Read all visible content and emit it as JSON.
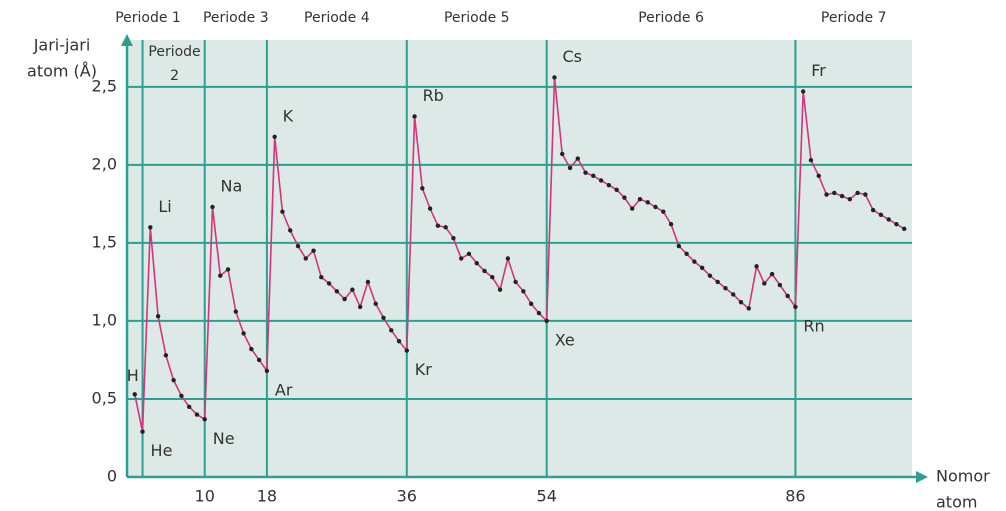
{
  "chart_data": {
    "type": "line",
    "ylabel": [
      "Jari-jari",
      "atom (Å)"
    ],
    "xlabel": [
      "Nomor",
      "atom"
    ],
    "x": [
      1,
      2,
      3,
      4,
      5,
      6,
      7,
      8,
      9,
      10,
      11,
      12,
      13,
      14,
      15,
      16,
      17,
      18,
      19,
      20,
      21,
      22,
      23,
      24,
      25,
      26,
      27,
      28,
      29,
      30,
      31,
      32,
      33,
      34,
      35,
      36,
      37,
      38,
      39,
      40,
      41,
      42,
      43,
      44,
      45,
      46,
      47,
      48,
      49,
      50,
      51,
      52,
      53,
      54,
      55,
      56,
      57,
      58,
      59,
      60,
      61,
      62,
      63,
      64,
      65,
      66,
      67,
      68,
      69,
      70,
      71,
      72,
      73,
      74,
      75,
      76,
      77,
      78,
      79,
      80,
      81,
      82,
      83,
      84,
      85,
      86,
      87,
      88,
      89,
      90,
      91,
      92,
      93,
      94,
      95,
      96,
      97,
      98,
      99,
      100
    ],
    "values": [
      0.53,
      0.29,
      1.6,
      1.03,
      0.78,
      0.62,
      0.52,
      0.45,
      0.4,
      0.37,
      1.73,
      1.29,
      1.33,
      1.06,
      0.92,
      0.82,
      0.75,
      0.68,
      2.18,
      1.7,
      1.58,
      1.48,
      1.4,
      1.45,
      1.28,
      1.24,
      1.19,
      1.14,
      1.2,
      1.09,
      1.25,
      1.11,
      1.02,
      0.94,
      0.87,
      0.81,
      2.31,
      1.85,
      1.72,
      1.61,
      1.6,
      1.53,
      1.4,
      1.43,
      1.37,
      1.32,
      1.28,
      1.2,
      1.4,
      1.25,
      1.19,
      1.11,
      1.05,
      1.0,
      2.56,
      2.07,
      1.98,
      2.04,
      1.95,
      1.93,
      1.9,
      1.87,
      1.84,
      1.79,
      1.72,
      1.78,
      1.76,
      1.73,
      1.7,
      1.62,
      1.48,
      1.43,
      1.38,
      1.34,
      1.29,
      1.25,
      1.21,
      1.17,
      1.12,
      1.08,
      1.35,
      1.24,
      1.3,
      1.23,
      1.16,
      1.09,
      2.47,
      2.03,
      1.93,
      1.81,
      1.82,
      1.8,
      1.78,
      1.82,
      1.81,
      1.71,
      1.68,
      1.65,
      1.62,
      1.59
    ],
    "color": "#d6327e",
    "marker_color": "#222222",
    "xlim": [
      0,
      101
    ],
    "ylim": [
      0,
      2.8
    ],
    "xticks": [
      10,
      18,
      36,
      54,
      86
    ],
    "yticks": [
      0,
      {
        "value": 0.5,
        "label": "0,5"
      },
      {
        "value": 1.0,
        "label": "1,0"
      },
      {
        "value": 1.5,
        "label": "1,5"
      },
      {
        "value": 2.0,
        "label": "2,0"
      },
      {
        "value": 2.5,
        "label": "2,5"
      }
    ],
    "grid": true,
    "periods": [
      {
        "label": "Periode 1",
        "end": 2
      },
      {
        "label": [
          "Periode",
          "2"
        ],
        "end": 10
      },
      {
        "label": "Periode 3",
        "end": 18
      },
      {
        "label": "Periode 4",
        "end": 36
      },
      {
        "label": "Periode 5",
        "end": 54
      },
      {
        "label": "Periode 6",
        "end": 86
      },
      {
        "label": "Periode 7"
      }
    ],
    "point_labels": [
      {
        "label": "H",
        "x": 1,
        "position": "above"
      },
      {
        "label": "He",
        "x": 2,
        "position": "below-right"
      },
      {
        "label": "Li",
        "x": 3,
        "position": "above-right"
      },
      {
        "label": "Ne",
        "x": 10,
        "position": "below-right"
      },
      {
        "label": "Na",
        "x": 11,
        "position": "above-right"
      },
      {
        "label": "Ar",
        "x": 18,
        "position": "below-right"
      },
      {
        "label": "K",
        "x": 19,
        "position": "above-right"
      },
      {
        "label": "Kr",
        "x": 36,
        "position": "below-right"
      },
      {
        "label": "Rb",
        "x": 37,
        "position": "above-right"
      },
      {
        "label": "Xe",
        "x": 54,
        "position": "below-right"
      },
      {
        "label": "Cs",
        "x": 55,
        "position": "above-right"
      },
      {
        "label": "Rn",
        "x": 86,
        "position": "below-right"
      },
      {
        "label": "Fr",
        "x": 87,
        "position": "above-right"
      }
    ]
  }
}
